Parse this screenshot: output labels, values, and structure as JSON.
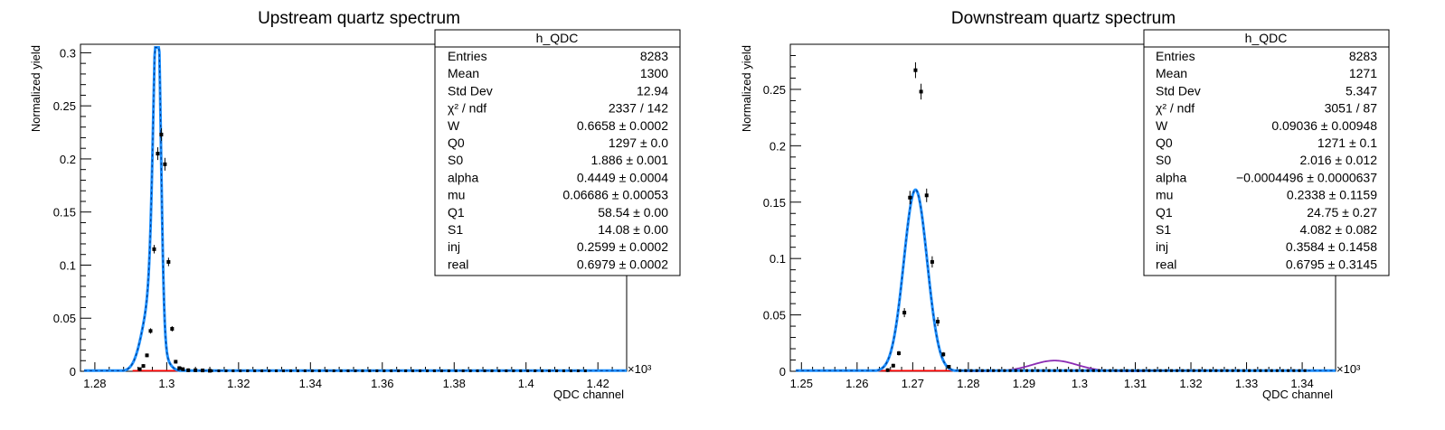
{
  "chart_data": [
    {
      "type": "scatter",
      "title": "Upstream quartz spectrum",
      "xlabel": "QDC channel",
      "ylabel": "Normalized yield",
      "x_multiplier": "×10³",
      "xlim": [
        1.276,
        1.428
      ],
      "ylim": [
        0,
        0.308
      ],
      "xticks": [
        1.28,
        1.3,
        1.32,
        1.34,
        1.36,
        1.38,
        1.4,
        1.42
      ],
      "xtick_labels": [
        "1.28",
        "1.3",
        "1.32",
        "1.34",
        "1.36",
        "1.38",
        "1.4",
        "1.42"
      ],
      "yticks": [
        0,
        0.05,
        0.1,
        0.15,
        0.2,
        0.25,
        0.3
      ],
      "ytick_labels": [
        "0",
        "0.05",
        "0.1",
        "0.15",
        "0.2",
        "0.25",
        "0.3"
      ],
      "points": {
        "x": [
          1.2925,
          1.2935,
          1.2945,
          1.2955,
          1.2965,
          1.2975,
          1.2985,
          1.2995,
          1.3005,
          1.3015,
          1.3025,
          1.3035,
          1.3045,
          1.306,
          1.308,
          1.31,
          1.312
        ],
        "y": [
          0.002,
          0.005,
          0.015,
          0.038,
          0.115,
          0.205,
          0.223,
          0.195,
          0.103,
          0.04,
          0.009,
          0.003,
          0.002,
          0.001,
          0.001,
          0.0008,
          0.0005
        ],
        "err": [
          0.0005,
          0.0009,
          0.0015,
          0.0025,
          0.004,
          0.006,
          0.006,
          0.006,
          0.004,
          0.0025,
          0.0012,
          0.0007,
          0.0005,
          0.0004,
          0.0004,
          0.0003,
          0.0003
        ]
      },
      "tail_points": {
        "x_start": 1.3125,
        "x_end": 1.4175,
        "step": 0.002,
        "y": 0.0004
      },
      "fit_curve": {
        "peak_x": 1.2975,
        "peak_y": 0.305,
        "sigma_left": 0.00115,
        "sigma_right": 0.0009,
        "shoulder_y": 0.07,
        "shoulder_sigma": 0.0026
      },
      "stats_box": {
        "title": "h_QDC",
        "rows": [
          {
            "label": "Entries",
            "value": "8283"
          },
          {
            "label": "Mean",
            "value": "1300"
          },
          {
            "label": "Std Dev",
            "value": "12.94"
          },
          {
            "label": "χ² / ndf",
            "value": "2337 / 142"
          },
          {
            "label": "W",
            "value": "0.6658 ± 0.0002"
          },
          {
            "label": "Q0",
            "value": "1297 ± 0.0"
          },
          {
            "label": "S0",
            "value": "1.886 ± 0.001"
          },
          {
            "label": "alpha",
            "value": "0.4449 ± 0.0004"
          },
          {
            "label": "mu",
            "value": "0.06686 ± 0.00053"
          },
          {
            "label": "Q1",
            "value": "58.54 ± 0.00"
          },
          {
            "label": "S1",
            "value": "14.08 ± 0.00"
          },
          {
            "label": "inj",
            "value": "0.2599 ± 0.0002"
          },
          {
            "label": "real",
            "value": "0.6979 ± 0.0002"
          }
        ]
      },
      "legend": "top-right",
      "grid": false,
      "colors": {
        "data": "#000000",
        "fit": "#1e90ff",
        "fit_dash": "#003c8f",
        "background_fit": "#ff0000",
        "secondary": "#8b2bb3"
      }
    },
    {
      "type": "scatter",
      "title": "Downstream quartz spectrum",
      "xlabel": "QDC channel",
      "ylabel": "Normalized yield",
      "x_multiplier": "×10³",
      "xlim": [
        1.248,
        1.346
      ],
      "ylim": [
        0,
        0.29
      ],
      "xticks": [
        1.25,
        1.26,
        1.27,
        1.28,
        1.29,
        1.3,
        1.31,
        1.32,
        1.33,
        1.34
      ],
      "xtick_labels": [
        "1.25",
        "1.26",
        "1.27",
        "1.28",
        "1.29",
        "1.3",
        "1.31",
        "1.32",
        "1.33",
        "1.34"
      ],
      "yticks": [
        0,
        0.05,
        0.1,
        0.15,
        0.2,
        0.25
      ],
      "ytick_labels": [
        "0",
        "0.05",
        "0.1",
        "0.15",
        "0.2",
        "0.25"
      ],
      "points": {
        "x": [
          1.2655,
          1.2665,
          1.2675,
          1.2685,
          1.2695,
          1.2705,
          1.2715,
          1.2725,
          1.2735,
          1.2745,
          1.2755,
          1.2765
        ],
        "y": [
          0.001,
          0.005,
          0.016,
          0.052,
          0.154,
          0.267,
          0.248,
          0.156,
          0.097,
          0.044,
          0.015,
          0.004
        ],
        "err": [
          0.0005,
          0.001,
          0.002,
          0.004,
          0.006,
          0.007,
          0.007,
          0.006,
          0.005,
          0.004,
          0.002,
          0.001
        ]
      },
      "tail_points": {
        "x_start": 1.2785,
        "x_end": 1.3405,
        "step": 0.001,
        "y": 0.0006
      },
      "fit_curve": {
        "peak_x": 1.2705,
        "peak_y": 0.161,
        "sigma": 0.0021,
        "secondary_x": 1.2955,
        "secondary_y": 0.0095,
        "secondary_sigma": 0.004
      },
      "stats_box": {
        "title": "h_QDC",
        "rows": [
          {
            "label": "Entries",
            "value": "8283"
          },
          {
            "label": "Mean",
            "value": "1271"
          },
          {
            "label": "Std Dev",
            "value": "5.347"
          },
          {
            "label": "χ² / ndf",
            "value": "3051 / 87"
          },
          {
            "label": "W",
            "value": "0.09036 ± 0.00948"
          },
          {
            "label": "Q0",
            "value": "1271 ± 0.1"
          },
          {
            "label": "S0",
            "value": "2.016 ± 0.012"
          },
          {
            "label": "alpha",
            "value": "−0.0004496 ± 0.0000637"
          },
          {
            "label": "mu",
            "value": "0.2338 ± 0.1159"
          },
          {
            "label": "Q1",
            "value": "24.75 ± 0.27"
          },
          {
            "label": "S1",
            "value": "4.082 ± 0.082"
          },
          {
            "label": "inj",
            "value": "0.3584 ± 0.1458"
          },
          {
            "label": "real",
            "value": "0.6795 ± 0.3145"
          }
        ]
      },
      "legend": "top-right",
      "grid": false,
      "colors": {
        "data": "#000000",
        "fit": "#1e90ff",
        "fit_dash": "#003c8f",
        "background_fit": "#ff0000",
        "secondary": "#8b2bb3"
      }
    }
  ]
}
